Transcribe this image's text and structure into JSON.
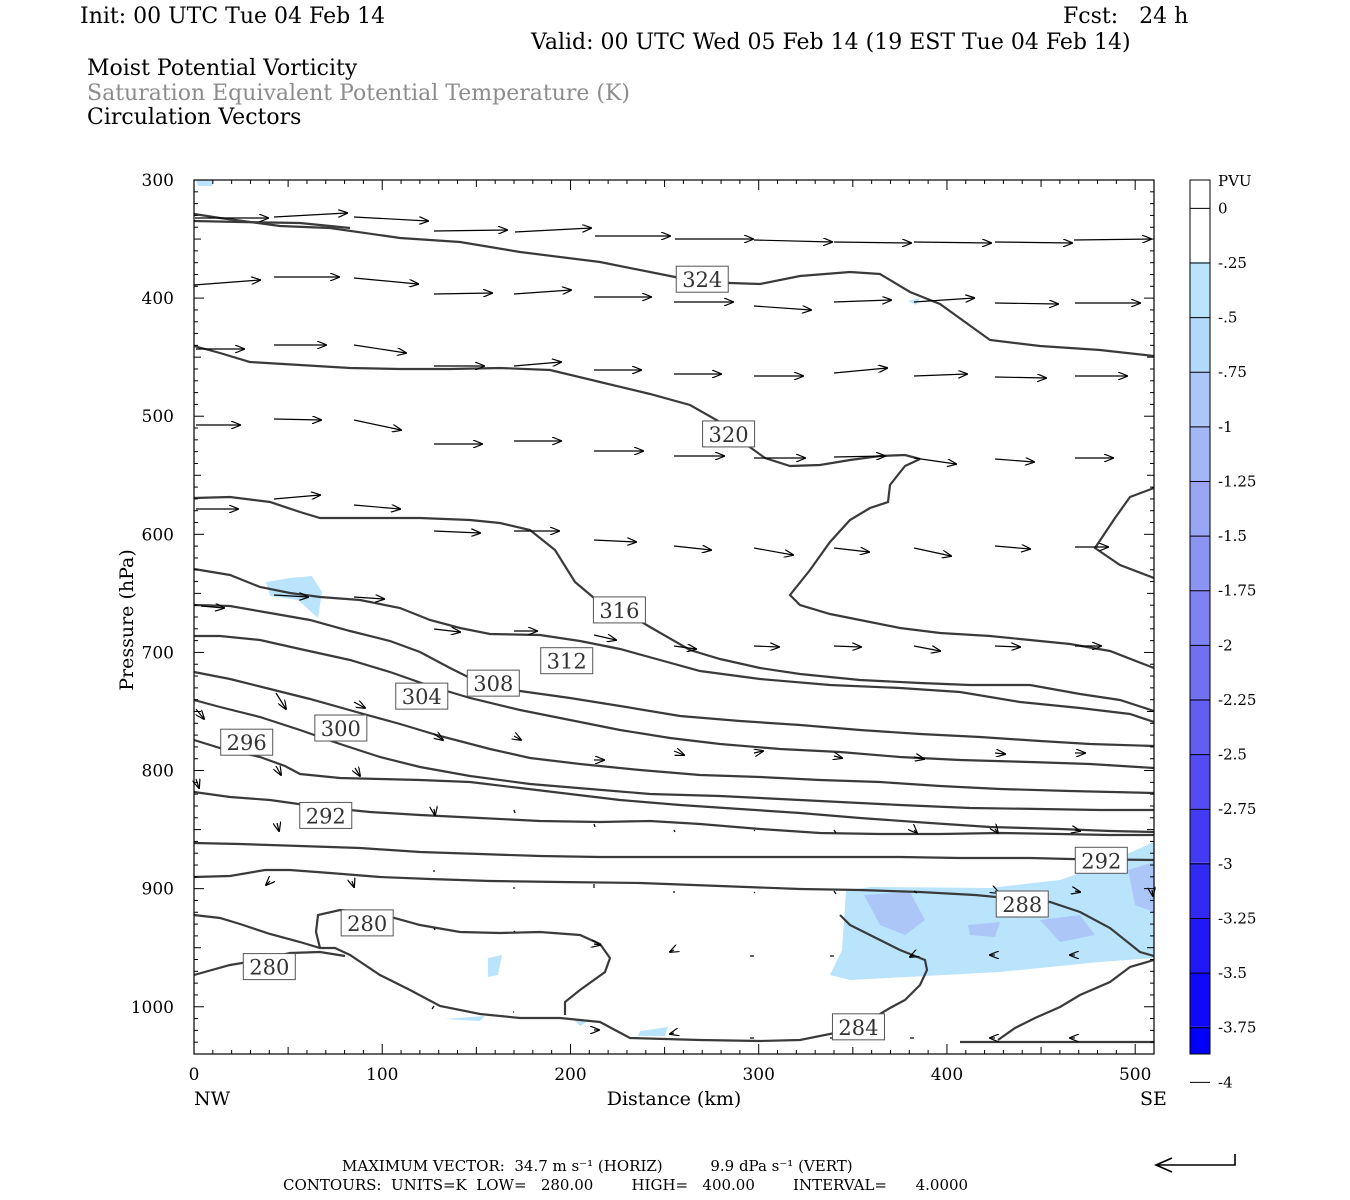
{
  "header": {
    "init": "Init: 00 UTC Tue 04 Feb 14",
    "fcst": "Fcst:   24 h",
    "valid": "Valid: 00 UTC Wed 05 Feb 14 (19 EST Tue 04 Feb 14)",
    "line1": "Moist Potential Vorticity",
    "line2": "Saturation Equivalent Potential Temperature (K)",
    "line3": "Circulation Vectors"
  },
  "chart_data": {
    "type": "cross-section contour",
    "xlabel": "Distance (km)",
    "ylabel": "Pressure (hPa)",
    "x_ticks": [
      "0",
      "100",
      "200",
      "300",
      "400",
      "500"
    ],
    "y_ticks": [
      "300",
      "400",
      "500",
      "600",
      "700",
      "800",
      "900",
      "1000"
    ],
    "xlim": [
      0,
      510
    ],
    "ylim": [
      300,
      1040
    ],
    "y_inverted": true,
    "x_end_labels": {
      "left": "NW",
      "right": "SE"
    },
    "contour_units": "K",
    "contour_low": 280.0,
    "contour_high": 400.0,
    "contour_interval": 4.0,
    "contour_labels": [
      {
        "text": "324",
        "x": 270,
        "p": 384
      },
      {
        "text": "320",
        "x": 284,
        "p": 515
      },
      {
        "text": "316",
        "x": 226,
        "p": 664
      },
      {
        "text": "312",
        "x": 198,
        "p": 707
      },
      {
        "text": "308",
        "x": 159,
        "p": 726
      },
      {
        "text": "304",
        "x": 121,
        "p": 737
      },
      {
        "text": "300",
        "x": 78,
        "p": 764
      },
      {
        "text": "296",
        "x": 28,
        "p": 776
      },
      {
        "text": "292",
        "x": 70,
        "p": 838
      },
      {
        "text": "292",
        "x": 482,
        "p": 876
      },
      {
        "text": "288",
        "x": 440,
        "p": 913
      },
      {
        "text": "280",
        "x": 92,
        "p": 929
      },
      {
        "text": "280",
        "x": 40,
        "p": 966
      },
      {
        "text": "284",
        "x": 353,
        "p": 1017
      }
    ],
    "colorbar": {
      "label": "PVU",
      "ticks": [
        "0",
        "-.25",
        "-.5",
        "-.75",
        "-1",
        "-1.25",
        "-1.5",
        "-1.75",
        "-2",
        "-2.25",
        "-2.5",
        "-2.75",
        "-3",
        "-3.25",
        "-3.5",
        "-3.75",
        "-4"
      ],
      "colors": [
        "#ffffff",
        "#ffffff",
        "#b9e4fc",
        "#b3d9fa",
        "#acc6f8",
        "#a3b7f6",
        "#98a6f4",
        "#8c94f3",
        "#7f82f2",
        "#7170f1",
        "#625ef1",
        "#524cf2",
        "#423bf3",
        "#3129f4",
        "#2118f6",
        "#1008f8",
        "#0000fa"
      ]
    }
  },
  "footer": {
    "max_vector": "MAXIMUM VECTOR:  34.7 m s⁻¹ (HORIZ)          9.9 dPa s⁻¹ (VERT)",
    "contours": "CONTOURS:  UNITS=K  LOW=   280.00        HIGH=   400.00        INTERVAL=      4.0000"
  }
}
